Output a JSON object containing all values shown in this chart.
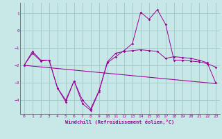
{
  "xlabel": "Windchill (Refroidissement éolien,°C)",
  "background_color": "#c8e8e8",
  "grid_color": "#a0c8c8",
  "line_color": "#990099",
  "spine_color": "#666666",
  "x_ticks": [
    0,
    1,
    2,
    3,
    4,
    5,
    6,
    7,
    8,
    9,
    10,
    11,
    12,
    13,
    14,
    15,
    16,
    17,
    18,
    19,
    20,
    21,
    22,
    23
  ],
  "y_ticks": [
    -4,
    -3,
    -2,
    -1,
    0,
    1
  ],
  "ylim": [
    -4.8,
    1.6
  ],
  "xlim": [
    -0.5,
    23.5
  ],
  "line1_y": [
    -2.0,
    -1.3,
    -1.75,
    -1.7,
    -3.3,
    -4.0,
    -2.9,
    -4.0,
    -4.5,
    -3.45,
    -1.8,
    -1.3,
    -1.2,
    -1.15,
    -1.1,
    -1.15,
    -1.2,
    -1.6,
    -1.5,
    -1.55,
    -1.6,
    -1.7,
    -1.85,
    -3.0
  ],
  "line2_y": [
    -2.0,
    -1.2,
    -1.7,
    -1.7,
    -3.3,
    -4.1,
    -2.9,
    -4.2,
    -4.6,
    -3.5,
    -1.85,
    -1.5,
    -1.15,
    -0.75,
    1.05,
    0.65,
    1.2,
    0.35,
    -1.7,
    -1.7,
    -1.75,
    -1.8,
    -1.9,
    -2.1
  ],
  "line3_x": [
    0,
    23
  ],
  "line3_y": [
    -2.0,
    -3.05
  ]
}
